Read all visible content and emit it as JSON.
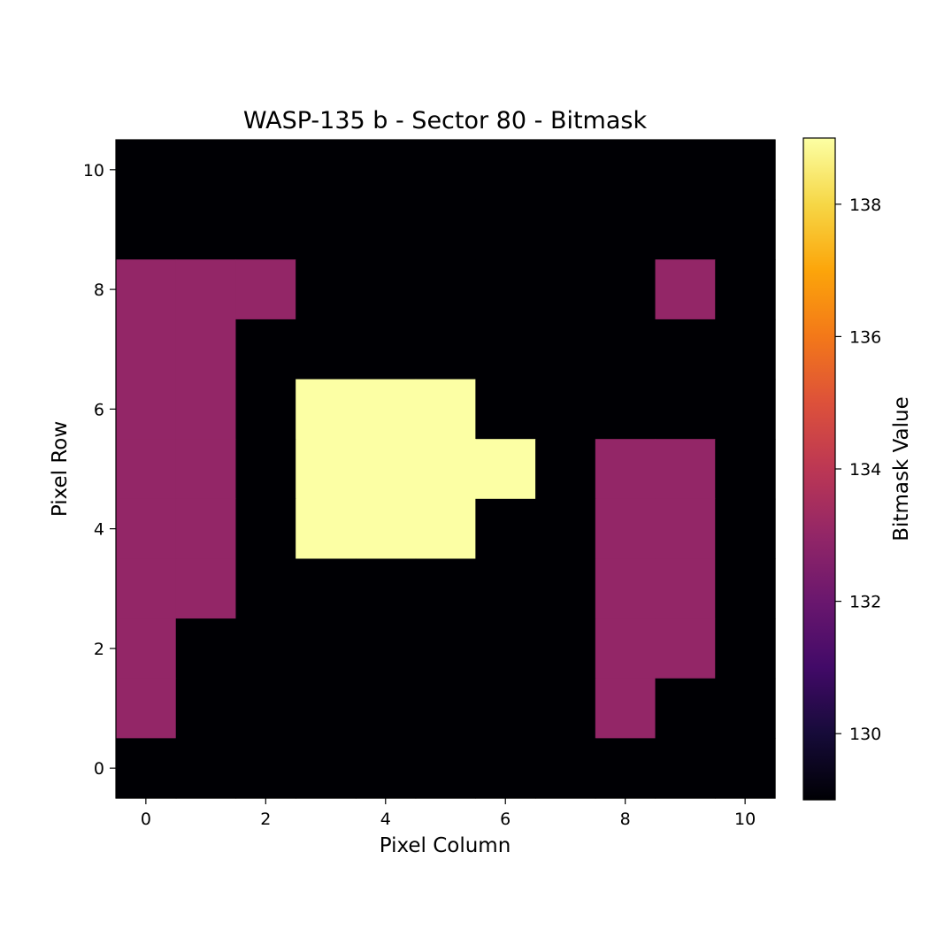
{
  "chart_data": {
    "type": "heatmap",
    "title": "WASP-135 b - Sector 80 - Bitmask",
    "xlabel": "Pixel Column",
    "ylabel": "Pixel Row",
    "colorbar_label": "Bitmask Value",
    "colormap": "inferno",
    "xlim": [
      -0.5,
      10.5
    ],
    "ylim": [
      -0.5,
      10.5
    ],
    "x_ticks": [
      0,
      2,
      4,
      6,
      8,
      10
    ],
    "y_ticks": [
      0,
      2,
      4,
      6,
      8,
      10
    ],
    "color_range": [
      129,
      139
    ],
    "colorbar_ticks": [
      130,
      132,
      134,
      136,
      138
    ],
    "grid": false,
    "rows_top_to_bottom": [
      10,
      9,
      8,
      7,
      6,
      5,
      4,
      3,
      2,
      1,
      0
    ],
    "values": [
      [
        129,
        129,
        129,
        129,
        129,
        129,
        129,
        129,
        129,
        129,
        129
      ],
      [
        129,
        129,
        129,
        129,
        129,
        129,
        129,
        129,
        129,
        129,
        129
      ],
      [
        133,
        133,
        133,
        129,
        129,
        129,
        129,
        129,
        129,
        133,
        129
      ],
      [
        133,
        133,
        129,
        129,
        129,
        129,
        129,
        129,
        129,
        129,
        129
      ],
      [
        133,
        133,
        129,
        139,
        139,
        139,
        129,
        129,
        129,
        129,
        129
      ],
      [
        133,
        133,
        129,
        139,
        139,
        139,
        139,
        129,
        133,
        133,
        129
      ],
      [
        133,
        133,
        129,
        139,
        139,
        139,
        129,
        129,
        133,
        133,
        129
      ],
      [
        133,
        133,
        129,
        129,
        129,
        129,
        129,
        129,
        133,
        133,
        129
      ],
      [
        133,
        129,
        129,
        129,
        129,
        129,
        129,
        129,
        133,
        133,
        129
      ],
      [
        133,
        129,
        129,
        129,
        129,
        129,
        129,
        129,
        133,
        129,
        129
      ],
      [
        129,
        129,
        129,
        129,
        129,
        129,
        129,
        129,
        129,
        129,
        129
      ]
    ]
  }
}
